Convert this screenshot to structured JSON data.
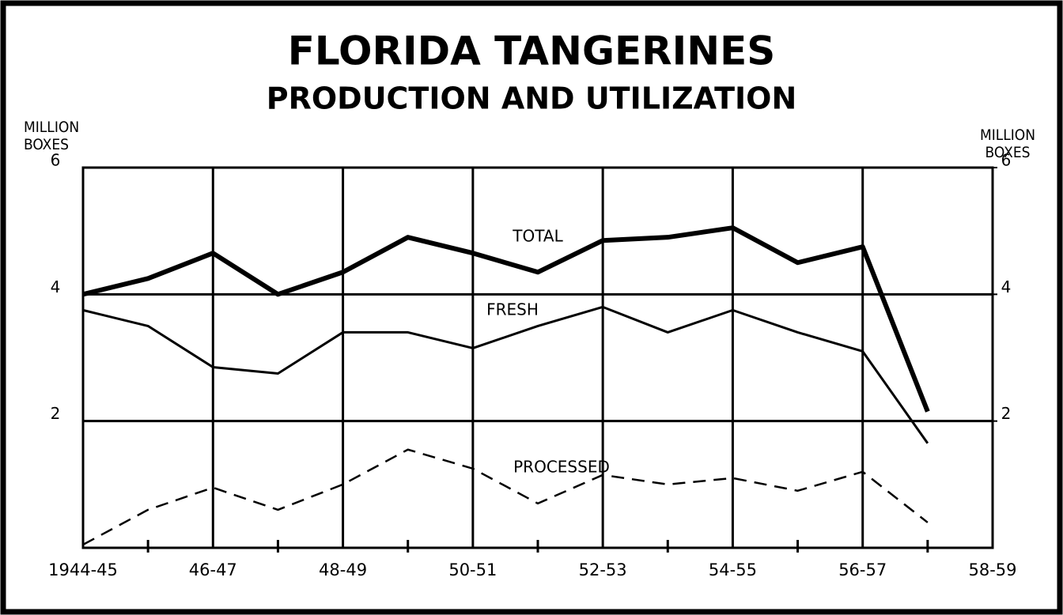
{
  "chart_data": {
    "type": "line",
    "title": "FLORIDA TANGERINES",
    "subtitle": "PRODUCTION AND UTILIZATION",
    "y_label": "MILLION BOXES",
    "y2_label": "MILLION BOXES",
    "categories": [
      "1944-45",
      null,
      "46-47",
      null,
      "48-49",
      null,
      "50-51",
      null,
      "52-53",
      null,
      "54-55",
      null,
      "56-57",
      null,
      "58-59"
    ],
    "series": [
      {
        "name": "TOTAL",
        "color": "#000000",
        "style": "thick",
        "values": [
          4.0,
          4.25,
          4.65,
          4.0,
          4.35,
          4.9,
          4.65,
          4.35,
          4.85,
          4.9,
          5.05,
          4.5,
          4.75,
          2.15,
          null
        ]
      },
      {
        "name": "FRESH",
        "color": "#000000",
        "style": "solid",
        "values": [
          3.75,
          3.5,
          2.85,
          2.75,
          3.4,
          3.4,
          3.15,
          3.5,
          3.8,
          3.4,
          3.75,
          3.4,
          3.1,
          1.65,
          null
        ]
      },
      {
        "name": "PROCESSED",
        "color": "#000000",
        "style": "dashed",
        "values": [
          0.05,
          0.6,
          0.95,
          0.6,
          1.0,
          1.55,
          1.25,
          0.7,
          1.15,
          1.0,
          1.1,
          0.9,
          1.2,
          0.4,
          null
        ]
      }
    ],
    "ylim": [
      0,
      6
    ],
    "yticks": [
      2,
      4,
      6
    ],
    "y2lim": [
      0,
      6
    ],
    "y2ticks": [
      2,
      4,
      6
    ],
    "grid": true
  }
}
